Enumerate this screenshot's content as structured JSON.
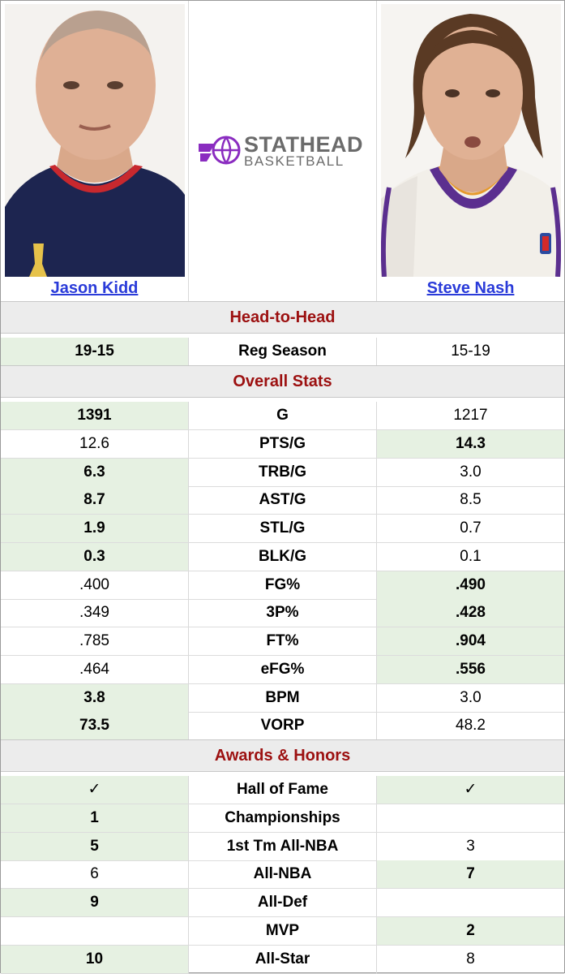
{
  "players": {
    "left": {
      "name": "Jason Kidd"
    },
    "right": {
      "name": "Steve Nash"
    }
  },
  "logo": {
    "line1": "STATHEAD",
    "line2": "BASKETBALL",
    "color_main": "#6b6b6b",
    "color_mark": "#8a2cc0"
  },
  "sections": {
    "head_to_head": "Head-to-Head",
    "overall": "Overall Stats",
    "awards": "Awards & Honors"
  },
  "head_to_head_rows": [
    {
      "label": "Reg Season",
      "left": "19-15",
      "right": "15-19",
      "winner": "left"
    }
  ],
  "overall_rows": [
    {
      "label": "G",
      "left": "1391",
      "right": "1217",
      "winner": "left"
    },
    {
      "label": "PTS/G",
      "left": "12.6",
      "right": "14.3",
      "winner": "right"
    },
    {
      "label": "TRB/G",
      "left": "6.3",
      "right": "3.0",
      "winner": "left"
    },
    {
      "label": "AST/G",
      "left": "8.7",
      "right": "8.5",
      "winner": "left"
    },
    {
      "label": "STL/G",
      "left": "1.9",
      "right": "0.7",
      "winner": "left"
    },
    {
      "label": "BLK/G",
      "left": "0.3",
      "right": "0.1",
      "winner": "left"
    },
    {
      "label": "FG%",
      "left": ".400",
      "right": ".490",
      "winner": "right"
    },
    {
      "label": "3P%",
      "left": ".349",
      "right": ".428",
      "winner": "right"
    },
    {
      "label": "FT%",
      "left": ".785",
      "right": ".904",
      "winner": "right"
    },
    {
      "label": "eFG%",
      "left": ".464",
      "right": ".556",
      "winner": "right"
    },
    {
      "label": "BPM",
      "left": "3.8",
      "right": "3.0",
      "winner": "left"
    },
    {
      "label": "VORP",
      "left": "73.5",
      "right": "48.2",
      "winner": "left"
    }
  ],
  "awards_rows": [
    {
      "label": "Hall of Fame",
      "left": "✓",
      "right": "✓",
      "winner": "both"
    },
    {
      "label": "Championships",
      "left": "1",
      "right": "",
      "winner": "left"
    },
    {
      "label": "1st Tm All-NBA",
      "left": "5",
      "right": "3",
      "winner": "left"
    },
    {
      "label": "All-NBA",
      "left": "6",
      "right": "7",
      "winner": "right"
    },
    {
      "label": "All-Def",
      "left": "9",
      "right": "",
      "winner": "left"
    },
    {
      "label": "MVP",
      "left": "",
      "right": "2",
      "winner": "right"
    },
    {
      "label": "All-Star",
      "left": "10",
      "right": "8",
      "winner": "left"
    }
  ],
  "colors": {
    "section_text": "#9c1010",
    "section_bg": "#ececec",
    "winner_bg": "#e6f1e2",
    "link": "#2a3bd9"
  }
}
